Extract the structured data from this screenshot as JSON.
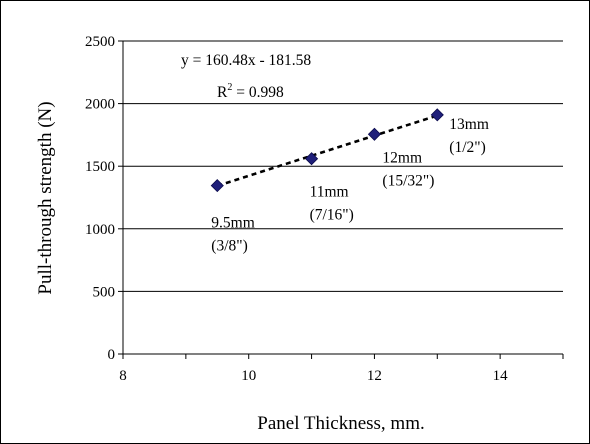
{
  "chart_data": {
    "type": "scatter",
    "title": "",
    "xlabel": "Panel Thickness, mm.",
    "ylabel": "Pull-through strength (N)",
    "xlim": [
      8,
      15
    ],
    "ylim": [
      0,
      2500
    ],
    "x_ticks": [
      "8",
      "10",
      "12",
      "14"
    ],
    "y_ticks": [
      "0",
      "500",
      "1000",
      "1500",
      "2000",
      "2500"
    ],
    "grid": "horizontal",
    "legend": "none",
    "marker_color": "#1F1F7A",
    "series": [
      {
        "points": [
          {
            "x": 9.5,
            "y": 1345,
            "label_line1": "9.5mm",
            "label_line2": "(3/8\")"
          },
          {
            "x": 11,
            "y": 1560,
            "label_line1": "11mm",
            "label_line2": "(7/16\")"
          },
          {
            "x": 12,
            "y": 1755,
            "label_line1": "12mm",
            "label_line2": "(15/32\")"
          },
          {
            "x": 13,
            "y": 1910,
            "label_line1": "13mm",
            "label_line2": "(1/2\")"
          }
        ]
      }
    ],
    "trendline": {
      "slope": 160.48,
      "intercept": -181.58,
      "x_range": [
        9.5,
        13
      ],
      "equation_text": "y = 160.48x - 181.58",
      "r2_prefix": "R",
      "r2_sup": "2",
      "r2_value": " = 0.998"
    }
  }
}
